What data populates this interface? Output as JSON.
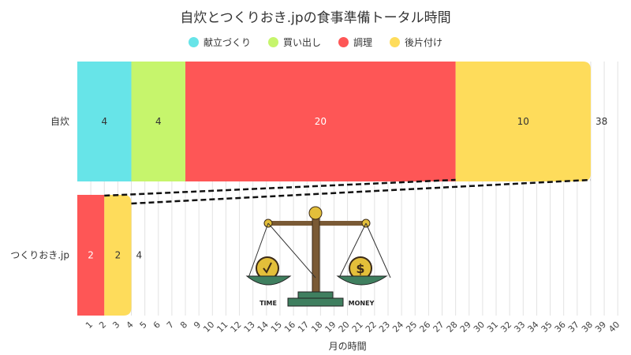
{
  "chart_data": {
    "type": "bar",
    "orientation": "horizontal",
    "stacked": true,
    "title": "自炊とつくりおき.jpの食事準備トータル時間",
    "xlabel": "月の時間",
    "ylabel": "",
    "xlim": [
      0,
      40
    ],
    "xticks": [
      1,
      2,
      3,
      4,
      5,
      6,
      7,
      8,
      9,
      10,
      11,
      12,
      13,
      14,
      15,
      16,
      17,
      18,
      19,
      20,
      21,
      22,
      23,
      24,
      25,
      26,
      27,
      28,
      29,
      30,
      31,
      32,
      33,
      34,
      35,
      36,
      37,
      38,
      39,
      40
    ],
    "grid": true,
    "legend_position": "top",
    "categories": [
      "自炊",
      "つくりおき.jp"
    ],
    "series": [
      {
        "name": "献立づくり",
        "color": "#67e4e8",
        "values": [
          4,
          0
        ]
      },
      {
        "name": "買い出し",
        "color": "#c6f56c",
        "values": [
          4,
          0
        ]
      },
      {
        "name": "調理",
        "color": "#fe5656",
        "values": [
          20,
          2
        ]
      },
      {
        "name": "後片付け",
        "color": "#fedc5b",
        "values": [
          10,
          2
        ]
      }
    ],
    "totals": [
      38,
      4
    ],
    "illustration_labels": [
      "TIME",
      "MONEY"
    ]
  }
}
